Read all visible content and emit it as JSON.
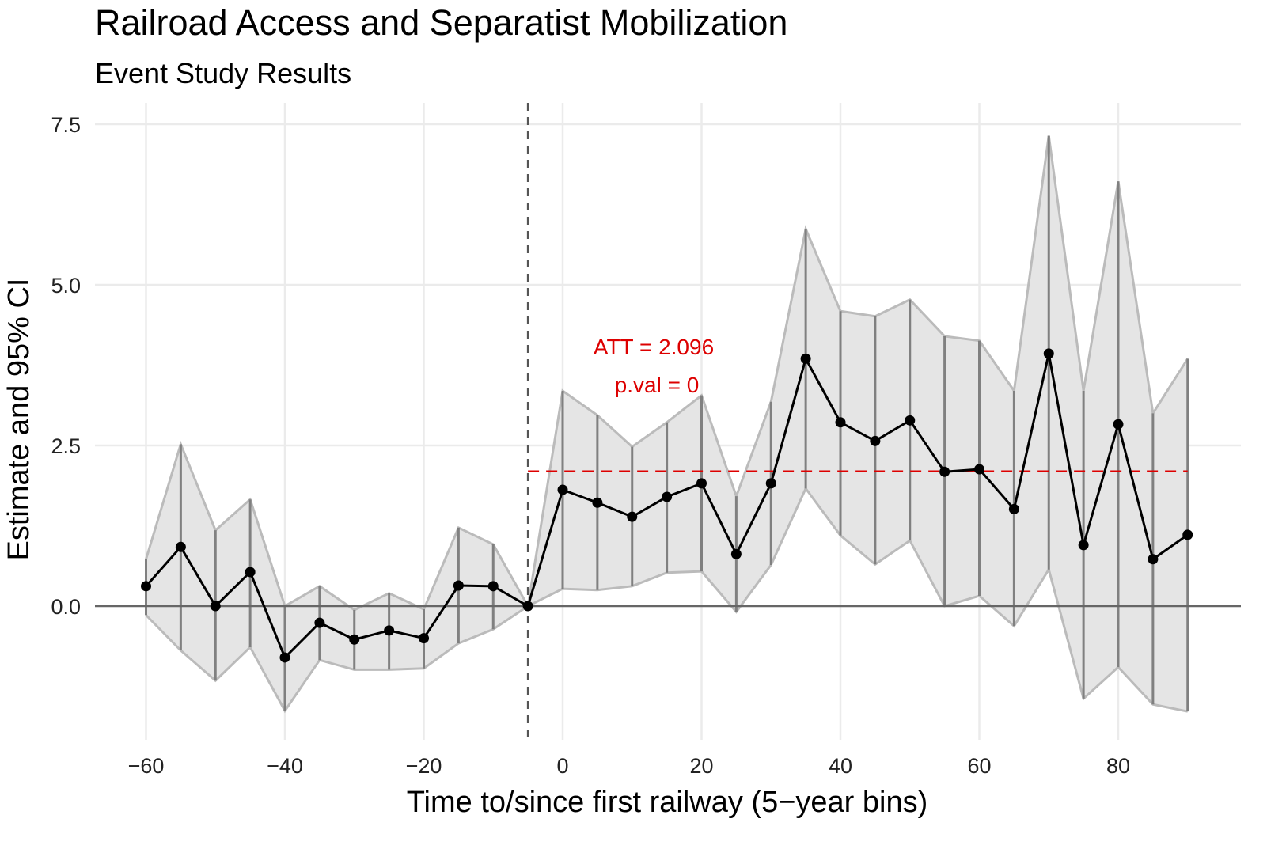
{
  "chart_data": {
    "type": "line",
    "title": "Railroad Access and Separatist Mobilization",
    "subtitle": "Event Study Results",
    "xlabel": "Time to/since first railway (5−year bins)",
    "ylabel": "Estimate and 95% CI",
    "xlim": [
      -67,
      97
    ],
    "ylim": [
      -2.0,
      7.9
    ],
    "x_ticks": [
      -60,
      -40,
      -20,
      0,
      20,
      40,
      60,
      80
    ],
    "x_tick_labels": [
      "−60",
      "−40",
      "−20",
      "0",
      "20",
      "40",
      "60",
      "80"
    ],
    "y_ticks": [
      0,
      2.5,
      5,
      7.5
    ],
    "y_tick_labels": [
      "0.0",
      "2.5",
      "5.0",
      "7.5"
    ],
    "grid": true,
    "x": [
      -60,
      -55,
      -50,
      -45,
      -40,
      -35,
      -30,
      -25,
      -20,
      -15,
      -10,
      -5,
      0,
      5,
      10,
      15,
      20,
      25,
      30,
      35,
      40,
      45,
      50,
      55,
      60,
      65,
      70,
      75,
      80,
      85,
      90
    ],
    "estimate": [
      0.31,
      0.92,
      0.0,
      0.53,
      -0.8,
      -0.26,
      -0.52,
      -0.38,
      -0.5,
      0.32,
      0.31,
      0.0,
      1.81,
      1.61,
      1.39,
      1.7,
      1.91,
      0.81,
      1.91,
      3.85,
      2.86,
      2.57,
      2.89,
      2.09,
      2.13,
      1.51,
      3.93,
      0.95,
      2.83,
      0.73,
      1.11
    ],
    "ci_upper": [
      0.73,
      2.52,
      1.18,
      1.66,
      0.0,
      0.31,
      -0.06,
      0.2,
      -0.05,
      1.22,
      0.96,
      0.0,
      3.35,
      2.97,
      2.48,
      2.86,
      3.28,
      1.71,
      3.18,
      5.87,
      4.59,
      4.51,
      4.77,
      4.2,
      4.13,
      3.35,
      7.32,
      3.35,
      6.61,
      3.0,
      3.85
    ],
    "ci_lower": [
      -0.14,
      -0.69,
      -1.16,
      -0.64,
      -1.63,
      -0.84,
      -0.99,
      -0.99,
      -0.97,
      -0.58,
      -0.36,
      0.0,
      0.27,
      0.25,
      0.31,
      0.52,
      0.54,
      -0.09,
      0.64,
      1.83,
      1.1,
      0.65,
      1.02,
      0.0,
      0.16,
      -0.31,
      0.57,
      -1.44,
      -0.95,
      -1.53,
      -1.64
    ],
    "reference_line_x": -5,
    "att": {
      "value": 2.096,
      "x_range": [
        -5,
        90
      ],
      "label": "ATT = 2.096",
      "pval_label": "p.val = 0",
      "color": "#dd0000"
    },
    "colors": {
      "ribbon": "#e5e5e5",
      "ribbon_edge": "#bbbbbb",
      "ci_bar": "#808080",
      "line": "#000000",
      "grid": "#ebebeb",
      "zero_line": "#666666"
    }
  }
}
